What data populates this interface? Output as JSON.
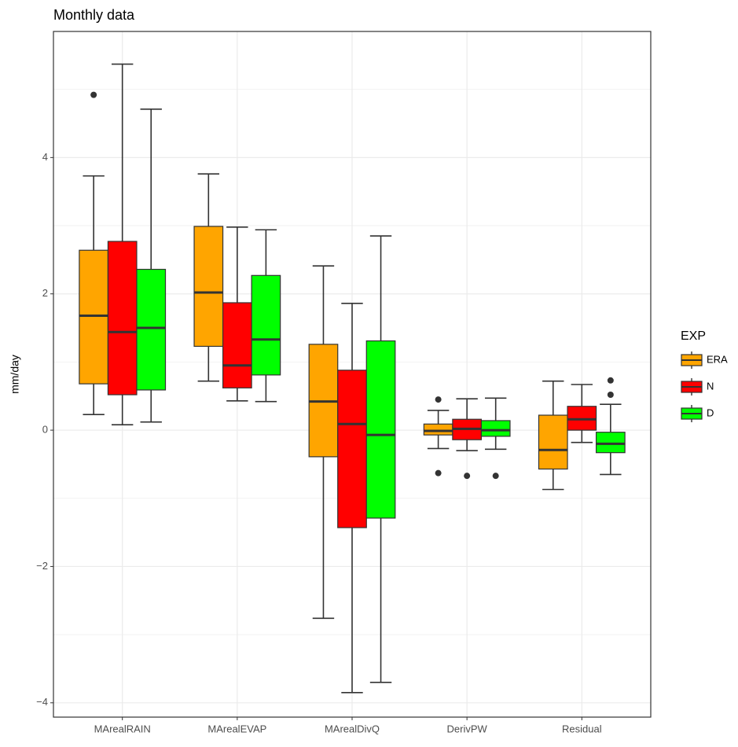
{
  "chart_data": {
    "type": "boxplot",
    "title": "Monthly data",
    "y_label": "mm/day",
    "legend_title": "EXP",
    "categories": [
      "MArealRAIN",
      "MArealEVAP",
      "MArealDivQ",
      "DerivPW",
      "Residual"
    ],
    "ylim": [
      -4.21,
      5.85
    ],
    "yticks": [
      {
        "value": -4,
        "label": "−4"
      },
      {
        "value": -2,
        "label": "−2"
      },
      0,
      2,
      4
    ],
    "grid": true,
    "series": [
      {
        "name": "ERA",
        "color": "#FFA500",
        "boxes": [
          {
            "whislo": 0.23,
            "q1": 0.68,
            "med": 1.68,
            "q3": 2.64,
            "whishi": 3.73,
            "fliers": [
              4.92
            ]
          },
          {
            "whislo": 0.72,
            "q1": 1.23,
            "med": 2.02,
            "q3": 2.99,
            "whishi": 3.76,
            "fliers": []
          },
          {
            "whislo": -2.76,
            "q1": -0.39,
            "med": 0.42,
            "q3": 1.26,
            "whishi": 2.41,
            "fliers": []
          },
          {
            "whislo": -0.27,
            "q1": -0.07,
            "med": -0.01,
            "q3": 0.09,
            "whishi": 0.29,
            "fliers": [
              0.45,
              -0.63
            ]
          },
          {
            "whislo": -0.87,
            "q1": -0.57,
            "med": -0.29,
            "q3": 0.22,
            "whishi": 0.72,
            "fliers": []
          }
        ]
      },
      {
        "name": "N",
        "color": "#FF0000",
        "boxes": [
          {
            "whislo": 0.08,
            "q1": 0.52,
            "med": 1.44,
            "q3": 2.77,
            "whishi": 5.37,
            "fliers": []
          },
          {
            "whislo": 0.43,
            "q1": 0.62,
            "med": 0.95,
            "q3": 1.87,
            "whishi": 2.98,
            "fliers": []
          },
          {
            "whislo": -3.85,
            "q1": -1.43,
            "med": 0.09,
            "q3": 0.88,
            "whishi": 1.86,
            "fliers": []
          },
          {
            "whislo": -0.3,
            "q1": -0.14,
            "med": 0.02,
            "q3": 0.16,
            "whishi": 0.46,
            "fliers": [
              -0.67
            ]
          },
          {
            "whislo": -0.18,
            "q1": 0,
            "med": 0.16,
            "q3": 0.35,
            "whishi": 0.67,
            "fliers": []
          }
        ]
      },
      {
        "name": "D",
        "color": "#00FF00",
        "boxes": [
          {
            "whislo": 0.12,
            "q1": 0.59,
            "med": 1.5,
            "q3": 2.36,
            "whishi": 4.71,
            "fliers": []
          },
          {
            "whislo": 0.42,
            "q1": 0.81,
            "med": 1.33,
            "q3": 2.27,
            "whishi": 2.94,
            "fliers": []
          },
          {
            "whislo": -3.7,
            "q1": -1.29,
            "med": -0.07,
            "q3": 1.31,
            "whishi": 2.85,
            "fliers": []
          },
          {
            "whislo": -0.28,
            "q1": -0.09,
            "med": 0,
            "q3": 0.14,
            "whishi": 0.47,
            "fliers": [
              -0.67
            ]
          },
          {
            "whislo": -0.65,
            "q1": -0.33,
            "med": -0.2,
            "q3": -0.03,
            "whishi": 0.38,
            "fliers": [
              0.73,
              0.52
            ]
          }
        ]
      }
    ]
  }
}
